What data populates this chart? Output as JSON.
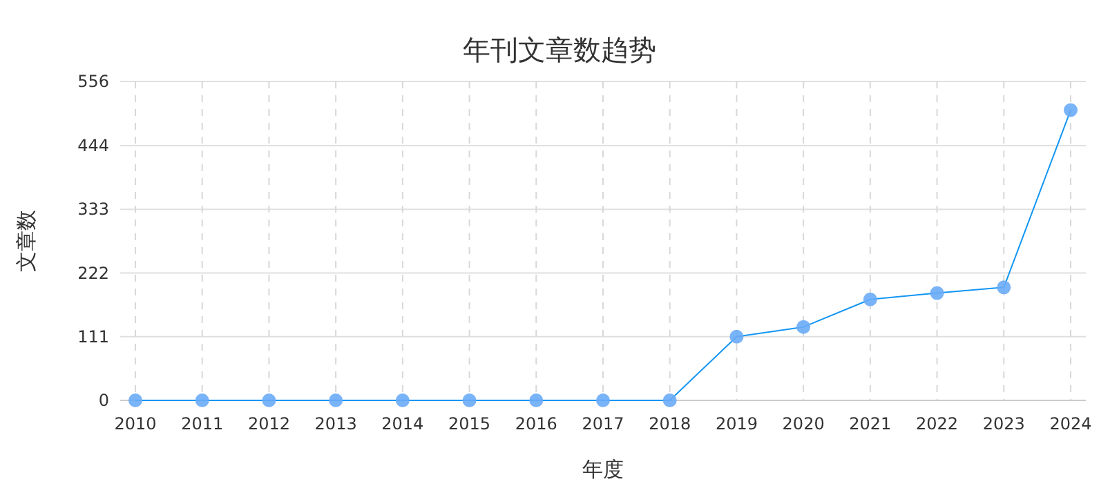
{
  "chart_data": {
    "type": "line",
    "title": "年刊文章数趋势",
    "xlabel": "年度",
    "ylabel": "文章数",
    "categories": [
      "2010",
      "2011",
      "2012",
      "2013",
      "2014",
      "2015",
      "2016",
      "2017",
      "2018",
      "2019",
      "2020",
      "2021",
      "2022",
      "2023",
      "2024"
    ],
    "series": [
      {
        "color": "#1296f3",
        "values": [
          0,
          0,
          0,
          0,
          0,
          0,
          0,
          0,
          0,
          111,
          128,
          176,
          187,
          197,
          506
        ]
      }
    ],
    "ylim": [
      0,
      556
    ],
    "yticks": [
      0,
      111,
      222,
      333,
      444,
      556
    ],
    "grid": true,
    "marker": "circle",
    "line_style": "solid"
  }
}
